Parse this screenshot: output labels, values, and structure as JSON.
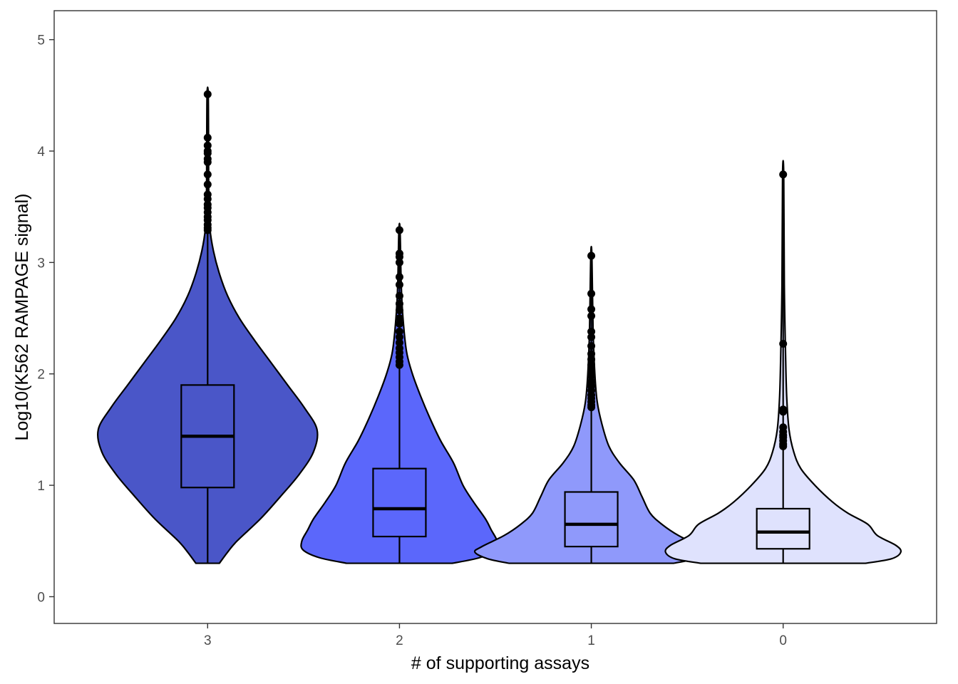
{
  "chart_data": {
    "type": "violin",
    "title": "",
    "xlabel": "# of supporting assays",
    "ylabel": "Log10(K562 RAMPAGE signal)",
    "ylim": [
      -0.24,
      5.26
    ],
    "yticks": [
      "0",
      "1",
      "2",
      "3",
      "4",
      "5"
    ],
    "grid": false,
    "legend": "none",
    "categories": [
      "3",
      "2",
      "1",
      "0"
    ],
    "groups": [
      {
        "category": "3",
        "fill": "#4a56c8",
        "min": 0.3,
        "q1": 0.98,
        "median": 1.44,
        "q3": 1.9,
        "whisker_high": 3.27,
        "max": 4.51,
        "outliers": [
          4.51,
          4.12,
          4.05,
          4.0,
          3.98,
          3.93,
          3.9,
          3.79,
          3.7,
          3.61,
          3.57,
          3.52,
          3.49,
          3.45,
          3.41,
          3.38,
          3.34,
          3.31,
          3.29
        ],
        "density": [
          [
            0.3,
            0.1
          ],
          [
            0.4,
            0.17
          ],
          [
            0.5,
            0.25
          ],
          [
            0.7,
            0.45
          ],
          [
            0.9,
            0.62
          ],
          [
            1.1,
            0.78
          ],
          [
            1.3,
            0.9
          ],
          [
            1.5,
            0.93
          ],
          [
            1.7,
            0.82
          ],
          [
            1.9,
            0.68
          ],
          [
            2.1,
            0.54
          ],
          [
            2.3,
            0.4
          ],
          [
            2.5,
            0.27
          ],
          [
            2.7,
            0.17
          ],
          [
            2.9,
            0.1
          ],
          [
            3.1,
            0.05
          ],
          [
            3.3,
            0.02
          ],
          [
            3.6,
            0.01
          ],
          [
            4.0,
            0.008
          ],
          [
            4.51,
            0.005
          ]
        ]
      },
      {
        "category": "2",
        "fill": "#5b67fb",
        "min": 0.3,
        "q1": 0.54,
        "median": 0.79,
        "q3": 1.15,
        "whisker_high": 2.06,
        "max": 3.29,
        "outliers": [
          3.29,
          3.08,
          3.05,
          3.0,
          2.87,
          2.8,
          2.7,
          2.63,
          2.57,
          2.5,
          2.45,
          2.38,
          2.33,
          2.28,
          2.23,
          2.19,
          2.15,
          2.11,
          2.08
        ],
        "density": [
          [
            0.3,
            0.45
          ],
          [
            0.35,
            0.68
          ],
          [
            0.42,
            0.82
          ],
          [
            0.5,
            0.83
          ],
          [
            0.6,
            0.78
          ],
          [
            0.7,
            0.73
          ],
          [
            0.85,
            0.63
          ],
          [
            1.0,
            0.54
          ],
          [
            1.2,
            0.46
          ],
          [
            1.4,
            0.35
          ],
          [
            1.6,
            0.26
          ],
          [
            1.8,
            0.18
          ],
          [
            2.0,
            0.11
          ],
          [
            2.2,
            0.06
          ],
          [
            2.5,
            0.03
          ],
          [
            2.8,
            0.015
          ],
          [
            3.29,
            0.005
          ]
        ]
      },
      {
        "category": "1",
        "fill": "#8f99fb",
        "min": 0.3,
        "q1": 0.45,
        "median": 0.65,
        "q3": 0.94,
        "whisker_high": 1.69,
        "max": 3.06,
        "outliers": [
          3.06,
          2.72,
          2.58,
          2.52,
          2.38,
          2.33,
          2.25,
          2.18,
          2.13,
          2.08,
          2.03,
          1.98,
          1.93,
          1.89,
          1.85,
          1.81,
          1.78,
          1.75,
          1.72,
          1.7
        ],
        "density": [
          [
            0.3,
            0.7
          ],
          [
            0.34,
            0.88
          ],
          [
            0.4,
            0.99
          ],
          [
            0.45,
            0.93
          ],
          [
            0.55,
            0.74
          ],
          [
            0.65,
            0.6
          ],
          [
            0.75,
            0.5
          ],
          [
            0.9,
            0.43
          ],
          [
            1.05,
            0.36
          ],
          [
            1.2,
            0.24
          ],
          [
            1.35,
            0.15
          ],
          [
            1.55,
            0.09
          ],
          [
            1.75,
            0.05
          ],
          [
            2.0,
            0.03
          ],
          [
            2.4,
            0.015
          ],
          [
            3.06,
            0.005
          ]
        ]
      },
      {
        "category": "0",
        "fill": "#dfe2fd",
        "min": 0.3,
        "q1": 0.43,
        "median": 0.58,
        "q3": 0.79,
        "whisker_high": 1.34,
        "max": 3.79,
        "outliers": [
          3.79,
          2.27,
          1.68,
          1.66,
          1.52,
          1.48,
          1.45,
          1.43,
          1.4,
          1.37,
          1.35
        ],
        "density": [
          [
            0.3,
            0.7
          ],
          [
            0.34,
            0.92
          ],
          [
            0.4,
            1.0
          ],
          [
            0.46,
            0.96
          ],
          [
            0.55,
            0.8
          ],
          [
            0.65,
            0.72
          ],
          [
            0.75,
            0.55
          ],
          [
            0.85,
            0.42
          ],
          [
            1.0,
            0.27
          ],
          [
            1.15,
            0.15
          ],
          [
            1.3,
            0.09
          ],
          [
            1.5,
            0.05
          ],
          [
            1.8,
            0.03
          ],
          [
            2.2,
            0.02
          ],
          [
            2.8,
            0.01
          ],
          [
            3.79,
            0.005
          ]
        ]
      }
    ]
  }
}
